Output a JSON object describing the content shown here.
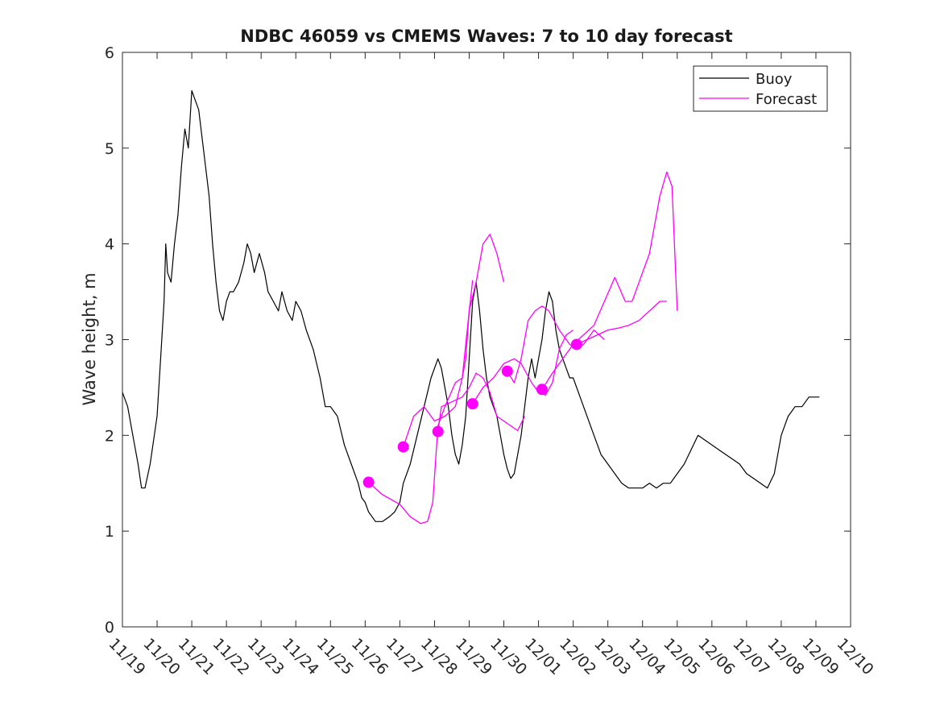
{
  "chart_data": {
    "type": "line",
    "title": "NDBC 46059 vs CMEMS Waves: 7 to 10 day forecast",
    "xlabel": "",
    "ylabel": "Wave height, m",
    "ylim": [
      0,
      6
    ],
    "xlim": [
      0,
      21
    ],
    "yticks": [
      "0",
      "1",
      "2",
      "3",
      "4",
      "5",
      "6"
    ],
    "xtick_labels": [
      "11/19",
      "11/20",
      "11/21",
      "11/22",
      "11/23",
      "11/24",
      "11/25",
      "11/26",
      "11/27",
      "11/28",
      "11/29",
      "11/30",
      "12/01",
      "12/02",
      "12/03",
      "12/04",
      "12/05",
      "12/06",
      "12/07",
      "12/08",
      "12/09",
      "12/10"
    ],
    "legend": {
      "placement": "top-right",
      "entries": [
        {
          "label": "Buoy",
          "color": "#000000"
        },
        {
          "label": "Forecast",
          "color": "#ff00ff"
        }
      ]
    },
    "series": [
      {
        "name": "Buoy",
        "color": "#000000",
        "points": [
          [
            0,
            2.45
          ],
          [
            0.15,
            2.3
          ],
          [
            0.3,
            2.0
          ],
          [
            0.45,
            1.7
          ],
          [
            0.55,
            1.45
          ],
          [
            0.65,
            1.45
          ],
          [
            0.8,
            1.7
          ],
          [
            0.9,
            1.95
          ],
          [
            1.0,
            2.2
          ],
          [
            1.1,
            2.8
          ],
          [
            1.2,
            3.4
          ],
          [
            1.25,
            4.0
          ],
          [
            1.3,
            3.7
          ],
          [
            1.4,
            3.6
          ],
          [
            1.5,
            4.0
          ],
          [
            1.6,
            4.3
          ],
          [
            1.7,
            4.8
          ],
          [
            1.8,
            5.2
          ],
          [
            1.9,
            5.0
          ],
          [
            2.0,
            5.6
          ],
          [
            2.1,
            5.5
          ],
          [
            2.2,
            5.4
          ],
          [
            2.3,
            5.1
          ],
          [
            2.4,
            4.8
          ],
          [
            2.5,
            4.5
          ],
          [
            2.6,
            4.0
          ],
          [
            2.7,
            3.6
          ],
          [
            2.8,
            3.3
          ],
          [
            2.9,
            3.2
          ],
          [
            3.0,
            3.4
          ],
          [
            3.1,
            3.5
          ],
          [
            3.2,
            3.5
          ],
          [
            3.35,
            3.6
          ],
          [
            3.5,
            3.8
          ],
          [
            3.6,
            4.0
          ],
          [
            3.7,
            3.9
          ],
          [
            3.8,
            3.7
          ],
          [
            3.95,
            3.9
          ],
          [
            4.1,
            3.7
          ],
          [
            4.2,
            3.5
          ],
          [
            4.35,
            3.4
          ],
          [
            4.5,
            3.3
          ],
          [
            4.6,
            3.5
          ],
          [
            4.75,
            3.3
          ],
          [
            4.9,
            3.2
          ],
          [
            5.0,
            3.4
          ],
          [
            5.15,
            3.3
          ],
          [
            5.3,
            3.1
          ],
          [
            5.5,
            2.9
          ],
          [
            5.7,
            2.6
          ],
          [
            5.85,
            2.3
          ],
          [
            6.0,
            2.3
          ],
          [
            6.2,
            2.2
          ],
          [
            6.4,
            1.9
          ],
          [
            6.6,
            1.7
          ],
          [
            6.8,
            1.5
          ],
          [
            6.9,
            1.35
          ],
          [
            7.0,
            1.3
          ],
          [
            7.1,
            1.2
          ],
          [
            7.2,
            1.15
          ],
          [
            7.3,
            1.1
          ],
          [
            7.5,
            1.1
          ],
          [
            7.7,
            1.15
          ],
          [
            7.85,
            1.2
          ],
          [
            8.0,
            1.3
          ],
          [
            8.1,
            1.5
          ],
          [
            8.3,
            1.7
          ],
          [
            8.5,
            2.0
          ],
          [
            8.7,
            2.3
          ],
          [
            8.9,
            2.6
          ],
          [
            9.1,
            2.8
          ],
          [
            9.2,
            2.7
          ],
          [
            9.3,
            2.5
          ],
          [
            9.4,
            2.3
          ],
          [
            9.5,
            2.0
          ],
          [
            9.6,
            1.8
          ],
          [
            9.7,
            1.7
          ],
          [
            9.8,
            1.9
          ],
          [
            9.9,
            2.2
          ],
          [
            10.0,
            2.8
          ],
          [
            10.1,
            3.4
          ],
          [
            10.2,
            3.6
          ],
          [
            10.3,
            3.3
          ],
          [
            10.4,
            2.9
          ],
          [
            10.5,
            2.6
          ],
          [
            10.6,
            2.4
          ],
          [
            10.7,
            2.3
          ],
          [
            10.8,
            2.2
          ],
          [
            10.9,
            2.0
          ],
          [
            11.0,
            1.8
          ],
          [
            11.1,
            1.65
          ],
          [
            11.2,
            1.55
          ],
          [
            11.3,
            1.6
          ],
          [
            11.4,
            1.8
          ],
          [
            11.5,
            2.0
          ],
          [
            11.6,
            2.3
          ],
          [
            11.7,
            2.6
          ],
          [
            11.8,
            2.8
          ],
          [
            11.9,
            2.6
          ],
          [
            12.0,
            2.8
          ],
          [
            12.1,
            3.0
          ],
          [
            12.2,
            3.3
          ],
          [
            12.3,
            3.5
          ],
          [
            12.4,
            3.4
          ],
          [
            12.5,
            3.1
          ],
          [
            12.6,
            2.9
          ],
          [
            12.7,
            2.8
          ],
          [
            12.8,
            2.7
          ],
          [
            12.9,
            2.6
          ],
          [
            13.0,
            2.6
          ],
          [
            13.2,
            2.4
          ],
          [
            13.4,
            2.2
          ],
          [
            13.6,
            2.0
          ],
          [
            13.8,
            1.8
          ],
          [
            14.0,
            1.7
          ],
          [
            14.2,
            1.6
          ],
          [
            14.4,
            1.5
          ],
          [
            14.6,
            1.45
          ],
          [
            14.8,
            1.45
          ],
          [
            15.0,
            1.45
          ],
          [
            15.2,
            1.5
          ],
          [
            15.4,
            1.45
          ],
          [
            15.6,
            1.5
          ],
          [
            15.8,
            1.5
          ],
          [
            16.0,
            1.6
          ],
          [
            16.2,
            1.7
          ],
          [
            16.4,
            1.85
          ],
          [
            16.6,
            2.0
          ],
          [
            16.8,
            1.95
          ],
          [
            17.0,
            1.9
          ],
          [
            17.2,
            1.85
          ],
          [
            17.4,
            1.8
          ],
          [
            17.6,
            1.75
          ],
          [
            17.8,
            1.7
          ],
          [
            18.0,
            1.6
          ],
          [
            18.2,
            1.55
          ],
          [
            18.4,
            1.5
          ],
          [
            18.6,
            1.45
          ],
          [
            18.8,
            1.6
          ],
          [
            19.0,
            2.0
          ],
          [
            19.2,
            2.2
          ],
          [
            19.4,
            2.3
          ],
          [
            19.6,
            2.3
          ],
          [
            19.8,
            2.4
          ],
          [
            20.0,
            2.4
          ],
          [
            20.1,
            2.4
          ]
        ]
      },
      {
        "name": "Forecast",
        "color": "#ff00ff",
        "traces": [
          [
            [
              7.1,
              1.51
            ],
            [
              7.5,
              1.38
            ],
            [
              8.0,
              1.28
            ],
            [
              8.3,
              1.15
            ],
            [
              8.6,
              1.08
            ],
            [
              8.8,
              1.1
            ],
            [
              8.95,
              1.3
            ],
            [
              9.1,
              2.1
            ],
            [
              9.3,
              2.3
            ],
            [
              9.6,
              2.55
            ],
            [
              9.8,
              2.6
            ],
            [
              9.9,
              2.8
            ],
            [
              10.0,
              3.3
            ],
            [
              10.1,
              3.62
            ]
          ],
          [
            [
              8.1,
              1.88
            ],
            [
              8.4,
              2.2
            ],
            [
              8.7,
              2.3
            ],
            [
              9.0,
              2.15
            ],
            [
              9.3,
              2.2
            ],
            [
              9.6,
              2.3
            ],
            [
              9.8,
              2.6
            ],
            [
              10.0,
              3.3
            ],
            [
              10.2,
              3.6
            ],
            [
              10.4,
              4.0
            ],
            [
              10.6,
              4.1
            ],
            [
              10.8,
              3.9
            ],
            [
              11.0,
              3.6
            ]
          ],
          [
            [
              9.1,
              2.04
            ],
            [
              9.2,
              2.3
            ],
            [
              9.5,
              2.35
            ],
            [
              9.8,
              2.4
            ],
            [
              10.0,
              2.5
            ],
            [
              10.2,
              2.65
            ],
            [
              10.4,
              2.6
            ],
            [
              10.6,
              2.45
            ],
            [
              10.8,
              2.2
            ],
            [
              11.0,
              2.15
            ],
            [
              11.2,
              2.1
            ],
            [
              11.4,
              2.05
            ],
            [
              11.6,
              2.2
            ]
          ],
          [
            [
              10.1,
              2.33
            ],
            [
              10.4,
              2.5
            ],
            [
              10.7,
              2.6
            ],
            [
              11.0,
              2.75
            ],
            [
              11.3,
              2.8
            ],
            [
              11.5,
              2.75
            ],
            [
              11.8,
              2.55
            ],
            [
              12.0,
              2.45
            ],
            [
              12.2,
              2.42
            ],
            [
              12.4,
              2.55
            ],
            [
              12.6,
              2.9
            ],
            [
              12.8,
              3.05
            ],
            [
              13.0,
              3.1
            ]
          ],
          [
            [
              11.1,
              2.67
            ],
            [
              11.3,
              2.55
            ],
            [
              11.5,
              2.8
            ],
            [
              11.7,
              3.2
            ],
            [
              11.9,
              3.3
            ],
            [
              12.1,
              3.35
            ],
            [
              12.3,
              3.3
            ],
            [
              12.6,
              3.1
            ],
            [
              12.9,
              2.95
            ],
            [
              13.1,
              2.9
            ],
            [
              13.3,
              2.95
            ],
            [
              13.6,
              3.1
            ],
            [
              13.9,
              3.0
            ]
          ],
          [
            [
              12.1,
              2.48
            ],
            [
              12.4,
              2.65
            ],
            [
              12.7,
              2.8
            ],
            [
              13.0,
              2.95
            ],
            [
              13.3,
              3.05
            ],
            [
              13.6,
              3.15
            ],
            [
              13.9,
              3.4
            ],
            [
              14.2,
              3.65
            ],
            [
              14.5,
              3.4
            ],
            [
              14.7,
              3.4
            ],
            [
              14.9,
              3.6
            ],
            [
              15.2,
              3.9
            ],
            [
              15.5,
              4.5
            ],
            [
              15.7,
              4.75
            ],
            [
              15.85,
              4.6
            ],
            [
              16.0,
              3.3
            ]
          ],
          [
            [
              13.1,
              2.95
            ],
            [
              13.4,
              3.0
            ],
            [
              13.7,
              3.05
            ],
            [
              14.0,
              3.1
            ],
            [
              14.3,
              3.12
            ],
            [
              14.6,
              3.15
            ],
            [
              14.9,
              3.2
            ],
            [
              15.2,
              3.3
            ],
            [
              15.5,
              3.4
            ],
            [
              15.7,
              3.4
            ]
          ]
        ],
        "markers": [
          [
            7.1,
            1.51
          ],
          [
            8.1,
            1.88
          ],
          [
            9.1,
            2.04
          ],
          [
            10.1,
            2.33
          ],
          [
            11.1,
            2.67
          ],
          [
            12.1,
            2.48
          ],
          [
            13.1,
            2.95
          ]
        ]
      }
    ]
  }
}
